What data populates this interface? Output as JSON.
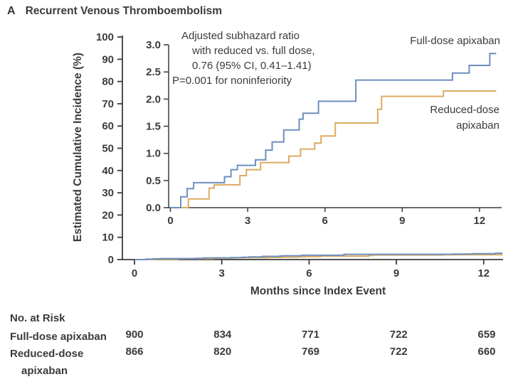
{
  "figure": {
    "panel_letter": "A",
    "title": "Recurrent Venous Thromboembolism"
  },
  "colors": {
    "text": "#3b3b3b",
    "axis": "#3b3b3b",
    "full_dose": "#6d8fbf",
    "reduced_dose": "#dcab60",
    "background": "#ffffff"
  },
  "chart_data": {
    "type": "line",
    "subtype": "kaplan-meier-step-with-inset",
    "title": "Recurrent Venous Thromboembolism",
    "xlabel": "Months since Index Event",
    "ylabel": "Estimated Cumulative Incidence (%)",
    "main_axis": {
      "xlim": [
        0,
        12.7
      ],
      "ylim": [
        0,
        100
      ],
      "xticks": [
        0,
        3,
        6,
        9,
        12
      ],
      "yticks": [
        0,
        10,
        20,
        30,
        40,
        50,
        60,
        70,
        80,
        90,
        100
      ]
    },
    "inset_axis": {
      "xlim": [
        0,
        12.7
      ],
      "ylim": [
        0,
        3.0
      ],
      "xticks": [
        0,
        3,
        6,
        9,
        12
      ],
      "yticks": [
        0,
        0.5,
        1.0,
        1.5,
        2.0,
        2.5,
        3.0
      ]
    },
    "annotation": {
      "lines": [
        "Adjusted subhazard ratio",
        "with reduced vs. full dose,",
        "0.76 (95% CI, 0.41–1.41)",
        "P=0.001 for noninferiority"
      ]
    },
    "legend": {
      "full_dose_label": "Full-dose apixaban",
      "reduced_dose_label": "Reduced-dose apixaban"
    },
    "series": [
      {
        "name": "Reduced-dose apixaban",
        "color": "#dcab60",
        "end_month": 12.65,
        "steps": [
          [
            0,
            0
          ],
          [
            0.7,
            0.16
          ],
          [
            1.5,
            0.36
          ],
          [
            1.7,
            0.42
          ],
          [
            2.7,
            0.59
          ],
          [
            2.95,
            0.7
          ],
          [
            3.5,
            0.83
          ],
          [
            4.6,
            0.95
          ],
          [
            5.05,
            1.08
          ],
          [
            5.6,
            1.19
          ],
          [
            5.85,
            1.32
          ],
          [
            6.4,
            1.56
          ],
          [
            8.05,
            1.81
          ],
          [
            8.2,
            2.05
          ],
          [
            10.6,
            2.15
          ]
        ]
      },
      {
        "name": "Full-dose apixaban",
        "color": "#6d8fbf",
        "end_month": 12.65,
        "steps": [
          [
            0,
            0
          ],
          [
            0.4,
            0.2
          ],
          [
            0.65,
            0.35
          ],
          [
            0.9,
            0.46
          ],
          [
            2.1,
            0.57
          ],
          [
            2.35,
            0.7
          ],
          [
            2.6,
            0.78
          ],
          [
            3.3,
            0.88
          ],
          [
            3.7,
            1.06
          ],
          [
            3.95,
            1.21
          ],
          [
            4.4,
            1.43
          ],
          [
            5.0,
            1.63
          ],
          [
            5.15,
            1.74
          ],
          [
            5.75,
            1.96
          ],
          [
            7.2,
            2.35
          ],
          [
            10.95,
            2.48
          ],
          [
            11.6,
            2.62
          ],
          [
            12.4,
            2.84
          ]
        ]
      }
    ],
    "at_risk": {
      "title": "No. at Risk",
      "timepoints": [
        0,
        3,
        6,
        9,
        12
      ],
      "rows": [
        {
          "label": "Full-dose apixaban",
          "values": [
            900,
            834,
            771,
            722,
            659
          ]
        },
        {
          "label": "Reduced-dose apixaban",
          "values": [
            866,
            820,
            769,
            722,
            660
          ]
        }
      ]
    }
  }
}
